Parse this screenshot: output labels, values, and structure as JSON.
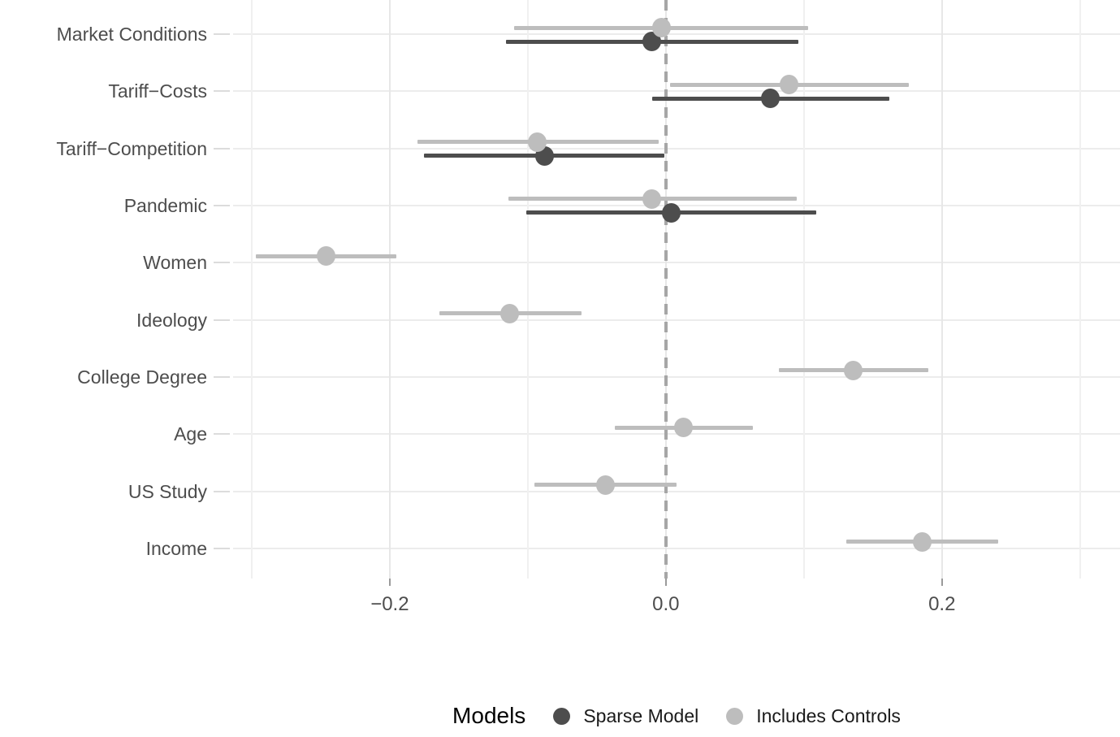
{
  "chart_data": {
    "type": "scatter",
    "subtype": "coefficient-forest-plot",
    "orientation": "horizontal",
    "title": "",
    "xlabel": "",
    "ylabel": "",
    "categories": [
      "Market Conditions",
      "Tariff−Costs",
      "Tariff−Competition",
      "Pandemic",
      "Women",
      "Ideology",
      "College Degree",
      "Age",
      "US Study",
      "Income"
    ],
    "series": [
      {
        "name": "Sparse Model",
        "color": "#4d4d4d",
        "points": [
          {
            "category": "Market Conditions",
            "estimate": -0.01,
            "ci_low": -0.116,
            "ci_high": 0.096
          },
          {
            "category": "Tariff−Costs",
            "estimate": 0.076,
            "ci_low": -0.01,
            "ci_high": 0.162
          },
          {
            "category": "Tariff−Competition",
            "estimate": -0.088,
            "ci_low": -0.175,
            "ci_high": -0.001
          },
          {
            "category": "Pandemic",
            "estimate": 0.004,
            "ci_low": -0.101,
            "ci_high": 0.109
          }
        ]
      },
      {
        "name": "Includes Controls",
        "color": "#bdbdbd",
        "points": [
          {
            "category": "Market Conditions",
            "estimate": -0.003,
            "ci_low": -0.11,
            "ci_high": 0.103
          },
          {
            "category": "Tariff−Costs",
            "estimate": 0.089,
            "ci_low": 0.003,
            "ci_high": 0.176
          },
          {
            "category": "Tariff−Competition",
            "estimate": -0.093,
            "ci_low": -0.18,
            "ci_high": -0.005
          },
          {
            "category": "Pandemic",
            "estimate": -0.01,
            "ci_low": -0.114,
            "ci_high": 0.095
          },
          {
            "category": "Women",
            "estimate": -0.246,
            "ci_low": -0.297,
            "ci_high": -0.195
          },
          {
            "category": "Ideology",
            "estimate": -0.113,
            "ci_low": -0.164,
            "ci_high": -0.061
          },
          {
            "category": "College Degree",
            "estimate": 0.136,
            "ci_low": 0.082,
            "ci_high": 0.19
          },
          {
            "category": "Age",
            "estimate": 0.013,
            "ci_low": -0.037,
            "ci_high": 0.063
          },
          {
            "category": "US Study",
            "estimate": -0.044,
            "ci_low": -0.095,
            "ci_high": 0.008
          },
          {
            "category": "Income",
            "estimate": 0.186,
            "ci_low": 0.131,
            "ci_high": 0.241
          }
        ]
      }
    ],
    "x_axis": {
      "ticks": [
        -0.2,
        0,
        0.2
      ],
      "tick_labels": [
        "−0.2",
        "0.0",
        "0.2"
      ],
      "minor_ticks": [
        -0.3,
        -0.1,
        0.1,
        0.3
      ],
      "xlim": [
        -0.3135,
        0.329
      ],
      "zero_line": 0
    },
    "legend": {
      "title": "Models",
      "entries": [
        "Sparse Model",
        "Includes Controls"
      ],
      "position": "bottom"
    },
    "grid": true,
    "colors": {
      "background": "#ffffff",
      "gridline": "#ececec",
      "zero_line": "#a6a6a6",
      "axis_text": "#4d4d4d",
      "legend_text": "#1a1a1a",
      "sparse_model": "#4d4d4d",
      "includes_controls": "#bdbdbd"
    }
  }
}
